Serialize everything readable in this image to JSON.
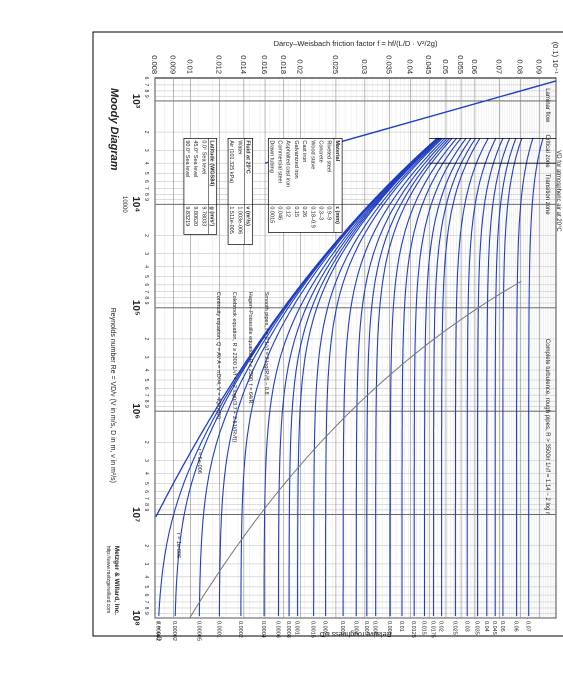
{
  "chart_data": {
    "type": "line",
    "title": "Moody Diagram",
    "xlabel": "Reynolds number Re = VD/ν  (V in m/s, D in m, ν in m²/s)",
    "ylabel": "Darcy–Weisbach friction factor f = hf/(L/D · V²/2g)",
    "right_label": "Relative roughness ε/D",
    "publisher": "Metzger & Willard, Inc.",
    "publisher_url": "http://www.metzgerwillard.com",
    "xscale": "log",
    "yscale": "log",
    "xlim": [
      600,
      100000000
    ],
    "ylim": [
      0.008,
      0.1
    ],
    "grid": true,
    "x_ticks": [
      "10³",
      "10⁴",
      "10⁵",
      "10⁶",
      "10⁷",
      "10⁸"
    ],
    "y_ticks": [
      "0.008",
      "0.009",
      "0.01",
      "0.012",
      "0.014",
      "0.016",
      "0.018",
      "0.02",
      "0.025",
      "0.03",
      "0.035",
      "0.04",
      "0.045",
      "0.05",
      "0.055",
      "0.06",
      "0.07",
      "0.08",
      "0.09",
      "(0.1) 10⁻¹"
    ],
    "roughness_values": [
      0.07,
      0.06,
      0.05,
      0.045,
      0.04,
      0.035,
      0.03,
      0.025,
      0.02,
      0.0175,
      0.015,
      0.0125,
      0.01,
      0.008,
      0.006,
      0.005,
      0.004,
      0.003,
      0.002,
      0.0015,
      0.001,
      0.0008,
      0.0006,
      0.0004,
      0.0002,
      0.0001,
      5e-05,
      2e-05,
      1e-05
    ],
    "roughness_labels": [
      "0.07",
      "0.06",
      "0.05",
      "0.045",
      "0.04",
      "0.035",
      "0.03",
      "0.025",
      "0.02",
      "0.0175",
      "0.015",
      "0.0125",
      "0.01",
      "0.008",
      "0.006",
      "0.005",
      "0.004",
      "0.003",
      "0.002",
      "0.0015",
      "0.001",
      "0.0008",
      "0.0006",
      "0.0004",
      "0.0002",
      "0.0001",
      "0.00005",
      "0.00002",
      "0.00001"
    ],
    "annotations": {
      "laminar": "Laminar flow",
      "critical": "Critical zone",
      "transition": "Transition zone",
      "complete": "Complete turbulence, rough pipes, R > 3500/r  1/√f = 1.14 − 2 log r",
      "smooth": "Smooth pipes, r = 0  1/√f = 2 log(R√f) − 0.8",
      "hagen": "Hagen–Poiseuille equation  R ≤ 2300, f = 64/R",
      "colebrook": "Colebrook equation, R ≥ 2300  1/√f = −2 log(r/3.7 + 2.51/(R√f))",
      "continuity": "Continuity equation, Q = AV  A = πD²/4, V = 4Q/(πD²)",
      "vd_water": "VD for water at 20°C (V in m/s, D in m)",
      "vd_air": "VD for atmospheric air at 20°C",
      "r_rel": "r = ε/D",
      "r_5e6": "r = 5e-006",
      "r_1e6": "r = 1e-006",
      "x10000": "10000"
    },
    "materials_table": {
      "headers": [
        "Material",
        "ε (mm)"
      ],
      "rows": [
        [
          "Riveted steel",
          "0.9–9"
        ],
        [
          "Concrete",
          "0.3–3"
        ],
        [
          "Wood stave",
          "0.18–0.9"
        ],
        [
          "Cast iron",
          "0.26"
        ],
        [
          "Galvanized iron",
          "0.15"
        ],
        [
          "Asphalted cast iron",
          "0.12"
        ],
        [
          "Commercial steel",
          "0.046"
        ],
        [
          "Drawn tubing",
          "0.0015"
        ]
      ]
    },
    "fluid_table": {
      "headers": [
        "Fluid at 20°C",
        "ν (m²/s)"
      ],
      "rows": [
        [
          "Water",
          "1.003e-006"
        ],
        [
          "Air (101.325 kPa)",
          "1.511e-005"
        ]
      ]
    },
    "latitude_table": {
      "headers": [
        "Latitude (WGS84)",
        "g (m/s²)"
      ],
      "rows": [
        [
          "0.0°  Sea level",
          "9.78033"
        ],
        [
          "45.0°  Sea level",
          "9.80620"
        ],
        [
          "90.0°  Sea level",
          "9.83219"
        ]
      ]
    }
  }
}
